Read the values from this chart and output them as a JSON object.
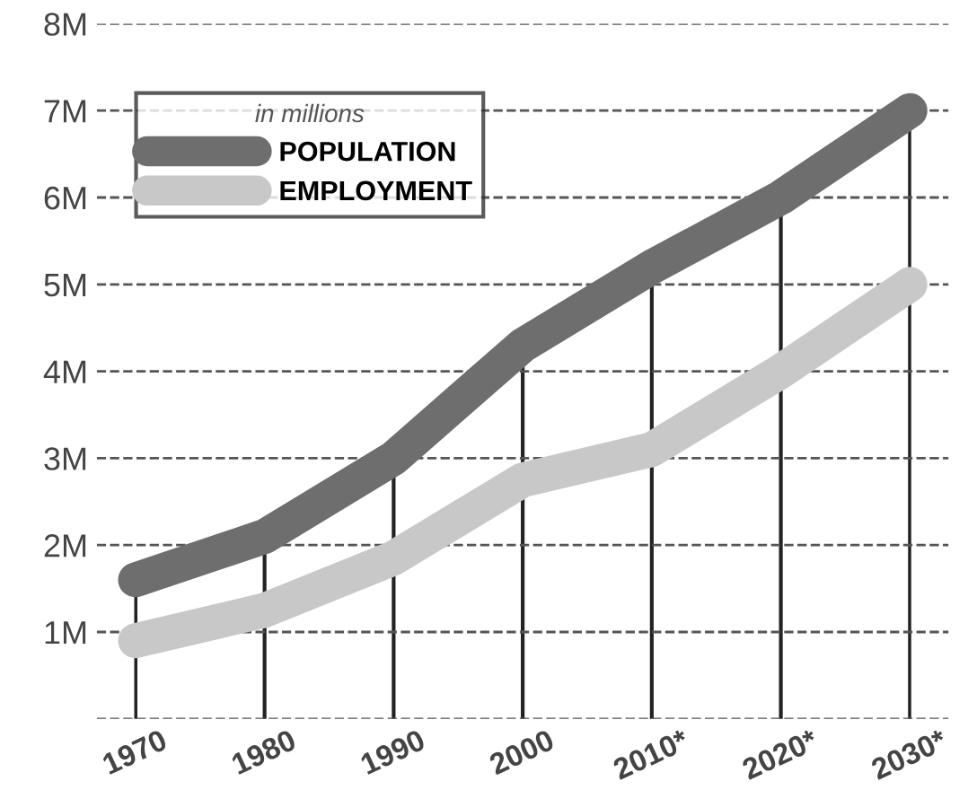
{
  "chart_data": {
    "type": "line",
    "categories": [
      "1970",
      "1980",
      "1990",
      "2000",
      "2010*",
      "2020*",
      "2030*"
    ],
    "series": [
      {
        "name": "POPULATION",
        "color": "#6e6e6e",
        "values": [
          1.6,
          2.1,
          3.0,
          4.3,
          5.2,
          6.0,
          7.0
        ]
      },
      {
        "name": "EMPLOYMENT",
        "color": "#c8c8c8",
        "values": [
          0.9,
          1.25,
          1.85,
          2.75,
          3.1,
          4.0,
          5.0
        ]
      }
    ],
    "legend_title": "in millions",
    "ylim": [
      0,
      8
    ],
    "yticks": [
      {
        "value": 0,
        "label": null
      },
      {
        "value": 1,
        "label": "1M"
      },
      {
        "value": 2,
        "label": "2M"
      },
      {
        "value": 3,
        "label": "3M"
      },
      {
        "value": 4,
        "label": "4M"
      },
      {
        "value": 5,
        "label": "5M"
      },
      {
        "value": 6,
        "label": "6M"
      },
      {
        "value": 7,
        "label": "7M"
      },
      {
        "value": 8,
        "label": "8M"
      }
    ],
    "grid": true,
    "legend": "top left",
    "line_style": "solid"
  }
}
